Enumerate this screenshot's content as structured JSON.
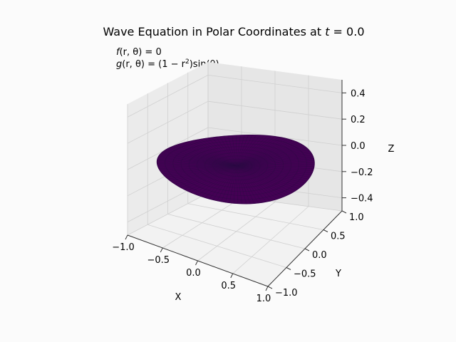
{
  "chart_data": {
    "type": "surface3d",
    "title_prefix": "Wave Equation in Polar Coordinates at ",
    "title_var": "t",
    "title_value": " = 0.0",
    "annotation": {
      "line1": {
        "f": "f",
        "args": "(r, θ)",
        "rhs": " = 0"
      },
      "line2": {
        "g": "g",
        "args": "(r, θ)",
        "rhs_a": " = (1 − r",
        "sup": "2",
        "rhs_b": ")sin(θ)"
      }
    },
    "xlabel": "X",
    "ylabel": "Y",
    "zlabel": "Z",
    "xticks": [
      "−1.0",
      "−0.5",
      "0.0",
      "0.5",
      "1.0"
    ],
    "yticks": [
      "−1.0",
      "−0.5",
      "0.0",
      "0.5",
      "1.0"
    ],
    "zticks": [
      "−0.4",
      "−0.2",
      "0.0",
      "0.2",
      "0.4"
    ],
    "xlim": [
      -1,
      1
    ],
    "ylim": [
      -1,
      1
    ],
    "zlim": [
      -0.5,
      0.5
    ],
    "surface": {
      "radius": 1,
      "z_value": 0,
      "color": "#440154",
      "line_color": "#2d0a45"
    }
  }
}
